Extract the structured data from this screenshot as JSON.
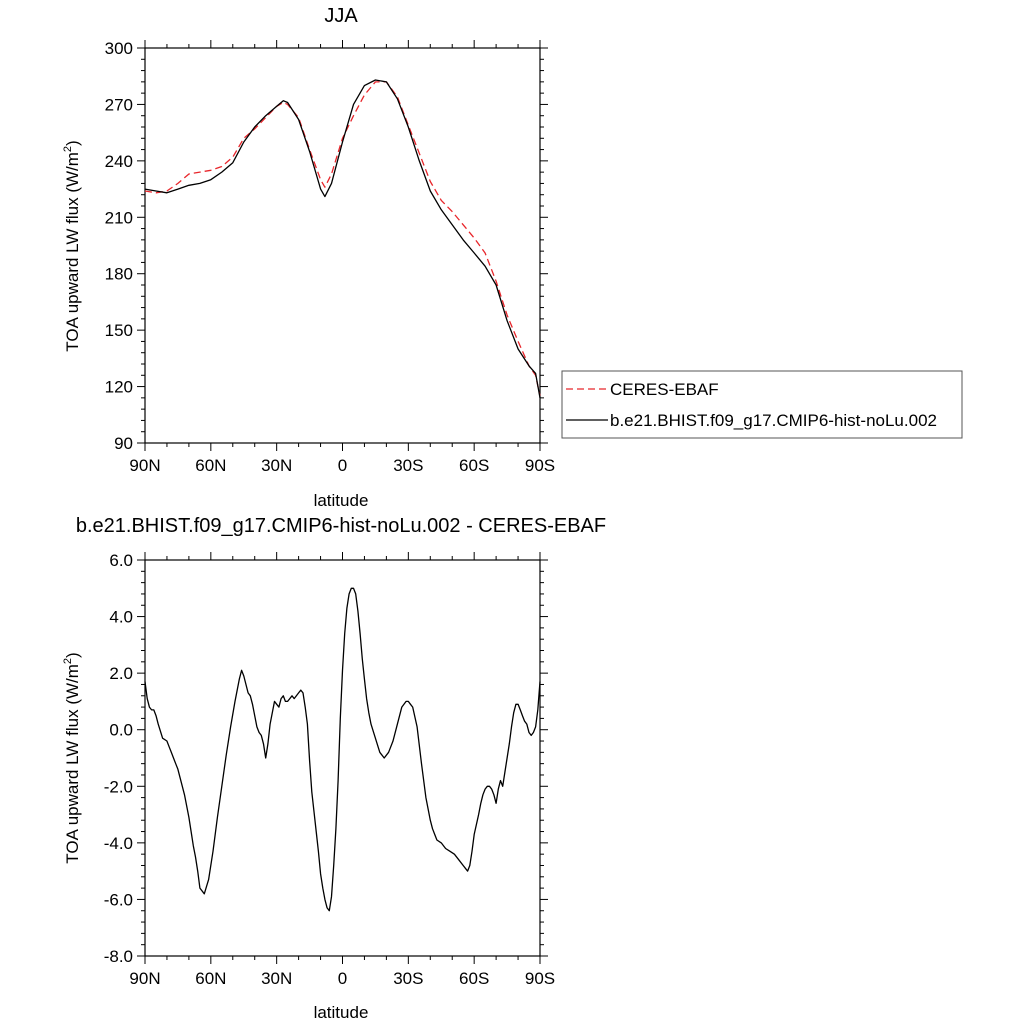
{
  "chart_data": [
    {
      "type": "line",
      "title": "JJA",
      "xlabel": "latitude",
      "ylabel": "TOA upward LW flux (W/m",
      "ylabel_sup": "2",
      "ylabel_close": ")",
      "xlim": [
        90,
        -90
      ],
      "ylim": [
        90,
        300
      ],
      "x_ticks": [
        90,
        60,
        30,
        0,
        -30,
        -60,
        -90
      ],
      "x_tick_labels": [
        "90N",
        "60N",
        "30N",
        "0",
        "30S",
        "60S",
        "90S"
      ],
      "y_ticks": [
        90,
        120,
        150,
        180,
        210,
        240,
        270,
        300
      ],
      "y_tick_labels": [
        "90",
        "120",
        "150",
        "180",
        "210",
        "240",
        "270",
        "300"
      ],
      "legend_position": "right",
      "series": [
        {
          "name": "CERES-EBAF",
          "color": "#e8262b",
          "dash": "dashed",
          "x": [
            90,
            85,
            80,
            75,
            70,
            65,
            60,
            55,
            50,
            45,
            40,
            35,
            30,
            27,
            25,
            20,
            15,
            10,
            8,
            5,
            0,
            -5,
            -10,
            -15,
            -20,
            -25,
            -30,
            -35,
            -40,
            -45,
            -50,
            -55,
            -60,
            -65,
            -70,
            -75,
            -80,
            -85,
            -88,
            -90
          ],
          "y": [
            224,
            223,
            224,
            228,
            233,
            234,
            235,
            237,
            242,
            252,
            257,
            263,
            269,
            271,
            270,
            263,
            246,
            230,
            226,
            233,
            252,
            264,
            275,
            282,
            282,
            274,
            259,
            244,
            229,
            219,
            213,
            206,
            199,
            191,
            176,
            158,
            144,
            131,
            126,
            115
          ]
        },
        {
          "name": "b.e21.BHIST.f09_g17.CMIP6-hist-noLu.002",
          "color": "#000000",
          "dash": "solid",
          "x": [
            90,
            85,
            80,
            75,
            70,
            65,
            60,
            55,
            50,
            45,
            40,
            35,
            30,
            27,
            25,
            20,
            15,
            10,
            8,
            5,
            0,
            -5,
            -10,
            -15,
            -20,
            -25,
            -30,
            -35,
            -40,
            -45,
            -50,
            -55,
            -60,
            -65,
            -70,
            -75,
            -80,
            -85,
            -88,
            -90
          ],
          "y": [
            225,
            224,
            223,
            225,
            227,
            228,
            230,
            234,
            239,
            250,
            258,
            264,
            269,
            272,
            271,
            262,
            245,
            225,
            221,
            228,
            250,
            270,
            280,
            283,
            282,
            273,
            258,
            240,
            224,
            214,
            206,
            198,
            191,
            184,
            174,
            155,
            140,
            131,
            127,
            114
          ]
        }
      ]
    },
    {
      "type": "line",
      "title": "b.e21.BHIST.f09_g17.CMIP6-hist-noLu.002 - CERES-EBAF",
      "xlabel": "latitude",
      "ylabel": "TOA upward LW flux (W/m",
      "ylabel_sup": "2",
      "ylabel_close": ")",
      "xlim": [
        90,
        -90
      ],
      "ylim": [
        -8,
        6
      ],
      "x_ticks": [
        90,
        60,
        30,
        0,
        -30,
        -60,
        -90
      ],
      "x_tick_labels": [
        "90N",
        "60N",
        "30N",
        "0",
        "30S",
        "60S",
        "90S"
      ],
      "y_ticks": [
        -8,
        -6,
        -4,
        -2,
        0,
        2,
        4,
        6
      ],
      "y_tick_labels": [
        "-8.0",
        "-6.0",
        "-4.0",
        "-2.0",
        "0.0",
        "2.0",
        "4.0",
        "6.0"
      ],
      "series": [
        {
          "color": "#000000",
          "dash": "solid",
          "x": [
            90,
            89,
            88,
            87,
            86,
            85,
            84,
            82,
            80,
            79,
            78,
            77,
            76,
            75,
            74,
            73,
            72,
            70,
            69,
            68,
            67,
            66,
            65,
            63,
            61,
            59,
            57,
            55,
            53,
            51,
            49,
            47,
            46,
            45,
            43,
            42,
            41,
            39,
            38,
            37,
            36,
            35,
            34,
            33,
            31,
            30,
            29,
            28,
            27,
            26,
            25,
            24,
            23,
            22,
            20,
            19,
            18,
            17,
            16,
            15,
            14,
            13,
            12,
            11,
            10,
            9,
            8,
            7,
            6,
            5,
            4,
            3,
            2,
            1,
            0,
            -1,
            -2,
            -3,
            -4,
            -5,
            -6,
            -7,
            -8,
            -9,
            -10,
            -11,
            -12,
            -13,
            -15,
            -17,
            -19,
            -21,
            -23,
            -25,
            -27,
            -29,
            -30,
            -31,
            -32,
            -34,
            -36,
            -38,
            -40,
            -41,
            -42,
            -43,
            -45,
            -47,
            -49,
            -51,
            -53,
            -55,
            -56,
            -57,
            -58,
            -59,
            -60,
            -62,
            -63,
            -64,
            -65,
            -66,
            -67,
            -68,
            -69,
            -70,
            -71,
            -72,
            -73,
            -74,
            -75,
            -76,
            -77,
            -78,
            -79,
            -80,
            -81,
            -82,
            -83,
            -84,
            -85,
            -86,
            -87,
            -88,
            -89,
            -90
          ],
          "y": [
            1.7,
            1.1,
            0.8,
            0.7,
            0.7,
            0.5,
            0.2,
            -0.3,
            -0.4,
            -0.6,
            -0.8,
            -1.0,
            -1.2,
            -1.4,
            -1.7,
            -2.0,
            -2.3,
            -3.1,
            -3.6,
            -4.1,
            -4.5,
            -5.0,
            -5.6,
            -5.8,
            -5.3,
            -4.3,
            -3.1,
            -2.0,
            -0.9,
            0.1,
            1.0,
            1.8,
            2.1,
            1.9,
            1.3,
            1.2,
            0.9,
            0.1,
            -0.1,
            -0.2,
            -0.5,
            -1.0,
            -0.5,
            0.2,
            1.0,
            0.9,
            0.8,
            1.1,
            1.2,
            1.0,
            1.0,
            1.1,
            1.2,
            1.1,
            1.3,
            1.4,
            1.3,
            0.8,
            0.2,
            -1.1,
            -2.2,
            -2.9,
            -3.6,
            -4.3,
            -5.1,
            -5.6,
            -6.0,
            -6.3,
            -6.4,
            -5.9,
            -4.8,
            -3.5,
            -1.8,
            0.4,
            2.1,
            3.4,
            4.3,
            4.8,
            5.0,
            5.0,
            4.8,
            4.2,
            3.4,
            2.5,
            1.8,
            1.1,
            0.6,
            0.2,
            -0.3,
            -0.8,
            -1.0,
            -0.8,
            -0.4,
            0.2,
            0.8,
            1.0,
            1.0,
            0.9,
            0.8,
            0.1,
            -1.2,
            -2.4,
            -3.2,
            -3.5,
            -3.7,
            -3.9,
            -4.0,
            -4.2,
            -4.3,
            -4.4,
            -4.6,
            -4.8,
            -4.9,
            -5.0,
            -4.8,
            -4.3,
            -3.7,
            -3.0,
            -2.6,
            -2.3,
            -2.1,
            -2.0,
            -2.0,
            -2.1,
            -2.3,
            -2.6,
            -2.1,
            -1.8,
            -2.0,
            -1.5,
            -1.0,
            -0.5,
            0.1,
            0.6,
            0.9,
            0.9,
            0.7,
            0.5,
            0.3,
            0.2,
            -0.1,
            -0.2,
            -0.1,
            0.1,
            0.7,
            1.7
          ]
        }
      ]
    }
  ]
}
